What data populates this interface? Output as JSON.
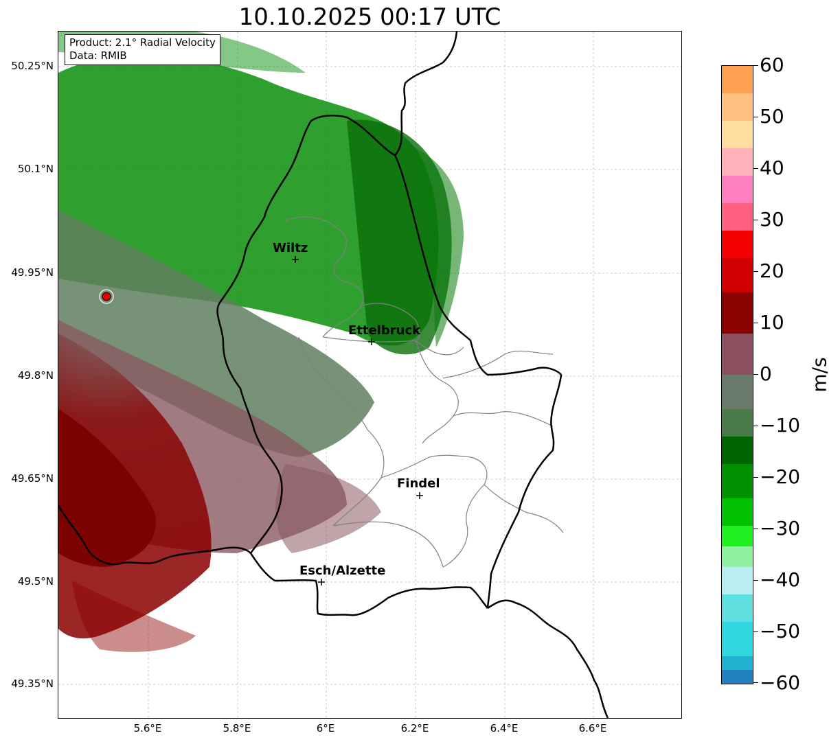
{
  "title": "10.10.2025 00:17 UTC",
  "info": {
    "product": "Product: 2.1° Radial Velocity",
    "data_source": "Data: RMIB"
  },
  "axes": {
    "lat_ticks": [
      "50.25°N",
      "50.1°N",
      "49.95°N",
      "49.8°N",
      "49.65°N",
      "49.5°N",
      "49.35°N"
    ],
    "lon_ticks": [
      "5.6°E",
      "5.8°E",
      "6°E",
      "6.2°E",
      "6.4°E",
      "6.6°E"
    ]
  },
  "cities": [
    {
      "name": "Wiltz"
    },
    {
      "name": "Ettelbruck"
    },
    {
      "name": "Findel"
    },
    {
      "name": "Esch/Alzette"
    }
  ],
  "colorbar": {
    "unit": "m/s",
    "ticks": [
      "60",
      "50",
      "40",
      "30",
      "20",
      "10",
      "0",
      "−10",
      "−20",
      "−30",
      "−40",
      "−50",
      "−60"
    ],
    "range": [
      -60,
      60
    ]
  },
  "colors": {
    "approaching_strong": "#0a9a0a",
    "approaching_weak": "#5f7f5f",
    "receding_weak": "#8a5a62",
    "receding_strong": "#8b0000",
    "radar_site": "#e00000",
    "border": "#000000",
    "canton_border": "#808080"
  }
}
